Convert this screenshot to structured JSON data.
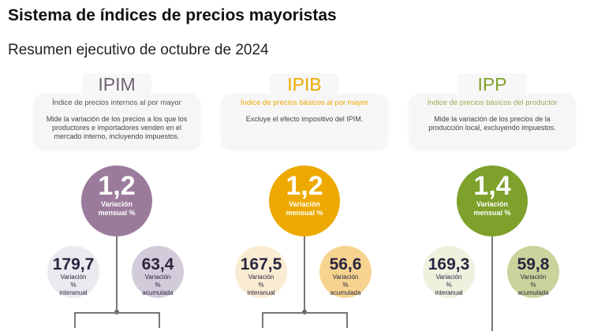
{
  "header": {
    "title": "Sistema de índices de precios mayoristas",
    "subtitle": "Resumen ejecutivo de octubre de 2024"
  },
  "indices": [
    {
      "code": "IPIM",
      "name": "Índice de precios internos al por mayor",
      "description": "Mide la variación de los precios a los que los productores e importadores venden en el mercado interno, incluyendo impuestos.",
      "monthly": "1,2",
      "monthly_label": "Variación mensual %",
      "yoy": "179,7",
      "yoy_label": "Variación % interanual",
      "ytd": "63,4",
      "ytd_label": "Variación % acumulada",
      "color": "#9b7b9c",
      "code_color": "#6e6470",
      "name_color": "#555555"
    },
    {
      "code": "IPIB",
      "name": "Índice de precios básicos al por mayor",
      "description": "Excluye el efecto impositivo del IPIM.",
      "monthly": "1,2",
      "monthly_label": "Variación mensual %",
      "yoy": "167,5",
      "yoy_label": "Variación % interanual",
      "ytd": "56,6",
      "ytd_label": "Variación % acumulada",
      "color": "#eda900",
      "code_color": "#eda900",
      "name_color": "#eda900"
    },
    {
      "code": "IPP",
      "name": "Índice de precios básicos del productor",
      "description": "Mide la variación de los precios de la producción local, excluyendo impuestos.",
      "monthly": "1,4",
      "monthly_label": "Variación mensual %",
      "yoy": "169,3",
      "yoy_label": "Variación % interanual",
      "ytd": "59,8",
      "ytd_label": "Variación % acumulada",
      "color": "#7da12b",
      "code_color": "#7da12b",
      "name_color": "#95ad55"
    }
  ]
}
